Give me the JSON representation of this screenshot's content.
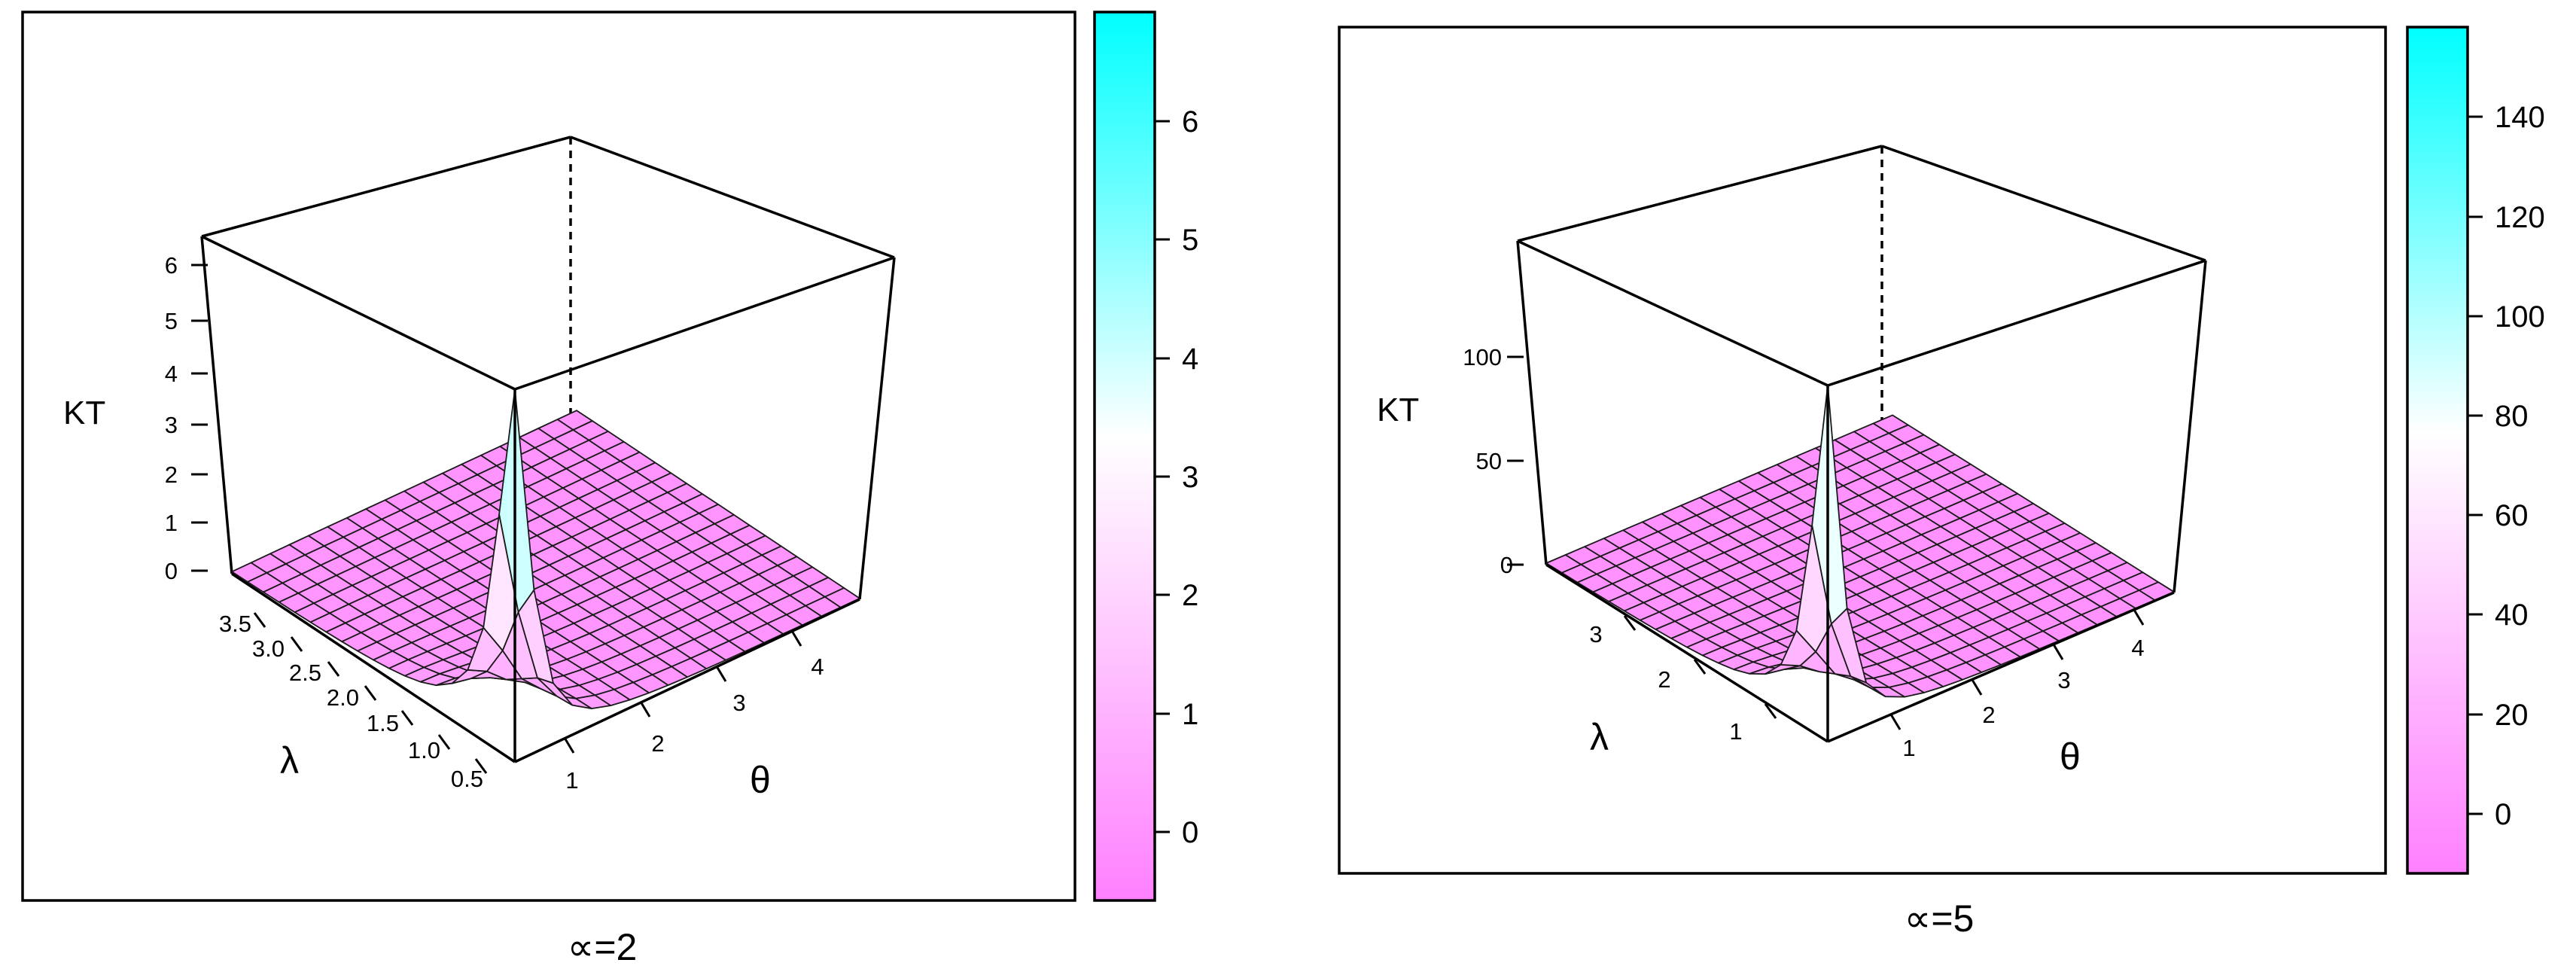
{
  "colors": {
    "low": "#ff80ff",
    "mid": "#ffffff",
    "high": "#00ffff",
    "surface_mesh": "#1a1a1a"
  },
  "chart_data": [
    {
      "type": "surface3d",
      "z_label": "KT",
      "x_label": "θ",
      "y_label": "λ",
      "caption": "∝=2",
      "alpha": 2,
      "theta_range": [
        0.5,
        5
      ],
      "lambda_range": [
        0.3,
        3.7
      ],
      "z_range": [
        0,
        6.6
      ],
      "peak": {
        "theta": 0.5,
        "lambda": 0.3,
        "KT": 6.6
      },
      "z_ticks": [
        "0",
        "1",
        "2",
        "3",
        "4",
        "5",
        "6"
      ],
      "lambda_ticks": [
        "0.5",
        "1.0",
        "1.5",
        "2.0",
        "2.5",
        "3.0",
        "3.5"
      ],
      "theta_ticks": [
        "1",
        "2",
        "3",
        "4"
      ],
      "colorbar": {
        "range": [
          -0.6,
          6.9
        ],
        "ticks": [
          "0",
          "1",
          "2",
          "3",
          "4",
          "5",
          "6"
        ]
      }
    },
    {
      "type": "surface3d",
      "z_label": "KT",
      "x_label": "θ",
      "y_label": "λ",
      "caption": "∝=5",
      "alpha": 5,
      "theta_range": [
        0.5,
        4.8
      ],
      "lambda_range": [
        0.3,
        3.8
      ],
      "z_range": [
        0,
        150
      ],
      "peak": {
        "theta": 0.5,
        "lambda": 0.3,
        "KT": 150
      },
      "z_ticks": [
        "0",
        "50",
        "100"
      ],
      "lambda_ticks": [
        "1",
        "2",
        "3"
      ],
      "theta_ticks": [
        "1",
        "2",
        "3",
        "4"
      ],
      "colorbar": {
        "range": [
          -12,
          158
        ],
        "ticks": [
          "0",
          "20",
          "40",
          "60",
          "80",
          "100",
          "120",
          "140"
        ]
      }
    }
  ]
}
